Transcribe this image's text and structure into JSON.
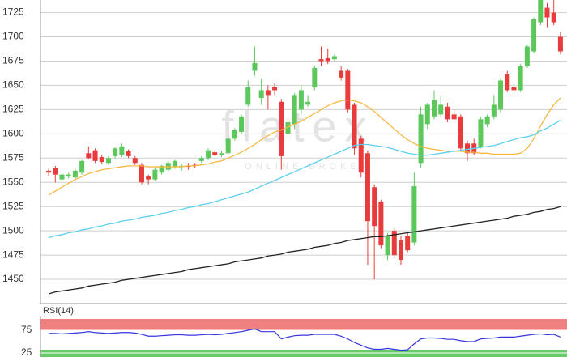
{
  "chart_data": [
    {
      "type": "candlestick",
      "watermark": {
        "logo": "flatex",
        "tagline": "ONLINE BROKER"
      },
      "ylim": [
        1425,
        1738
      ],
      "yticks": [
        1450,
        1475,
        1500,
        1525,
        1550,
        1575,
        1600,
        1625,
        1650,
        1675,
        1700,
        1725
      ],
      "grid": true,
      "up_color": "#5cc85c",
      "down_color": "#e83c3c",
      "open": [
        1562,
        1565,
        1553,
        1556,
        1555,
        1560,
        1580,
        1583,
        1576,
        1570,
        1577,
        1578,
        1582,
        1575,
        1568,
        1556,
        1553,
        1560,
        1563,
        1566,
        1566,
        1567,
        1568,
        1572,
        1575,
        1581,
        1578,
        1580,
        1595,
        1602,
        1630,
        1665,
        1637,
        1645,
        1648,
        1633,
        1600,
        1610,
        1625,
        1630,
        1648,
        1677,
        1678,
        1677,
        1665,
        1665,
        1630,
        1595,
        1580,
        1545,
        1530,
        1475,
        1500,
        1490,
        1495,
        1488,
        1570,
        1610,
        1618,
        1620,
        1628,
        1620,
        1618,
        1590,
        1590,
        1587,
        1610,
        1618,
        1625,
        1662,
        1648,
        1645,
        1670,
        1685,
        1715,
        1730,
        1725,
        1700
      ],
      "high": [
        1564,
        1567,
        1560,
        1560,
        1564,
        1573,
        1587,
        1585,
        1578,
        1577,
        1586,
        1590,
        1584,
        1577,
        1570,
        1558,
        1565,
        1568,
        1572,
        1573,
        1569,
        1570,
        1570,
        1577,
        1585,
        1583,
        1582,
        1598,
        1606,
        1620,
        1655,
        1690,
        1657,
        1650,
        1652,
        1636,
        1615,
        1642,
        1650,
        1640,
        1670,
        1690,
        1688,
        1682,
        1670,
        1667,
        1632,
        1598,
        1583,
        1548,
        1532,
        1498,
        1503,
        1495,
        1498,
        1560,
        1628,
        1632,
        1645,
        1640,
        1632,
        1625,
        1620,
        1593,
        1595,
        1618,
        1620,
        1640,
        1658,
        1665,
        1650,
        1672,
        1692,
        1720,
        1738,
        1735,
        1738,
        1705
      ],
      "low": [
        1557,
        1550,
        1552,
        1554,
        1553,
        1558,
        1574,
        1570,
        1569,
        1568,
        1575,
        1576,
        1575,
        1568,
        1548,
        1548,
        1551,
        1558,
        1561,
        1564,
        1562,
        1563,
        1565,
        1570,
        1573,
        1577,
        1576,
        1578,
        1593,
        1600,
        1628,
        1660,
        1630,
        1625,
        1640,
        1563,
        1595,
        1605,
        1620,
        1628,
        1645,
        1670,
        1672,
        1675,
        1655,
        1622,
        1578,
        1555,
        1465,
        1450,
        1482,
        1470,
        1472,
        1465,
        1478,
        1485,
        1565,
        1605,
        1615,
        1617,
        1612,
        1612,
        1583,
        1572,
        1578,
        1585,
        1607,
        1615,
        1622,
        1643,
        1642,
        1643,
        1668,
        1683,
        1712,
        1710,
        1712,
        1682
      ],
      "close": [
        1560,
        1558,
        1558,
        1558,
        1562,
        1572,
        1575,
        1572,
        1571,
        1575,
        1585,
        1587,
        1577,
        1570,
        1550,
        1553,
        1563,
        1567,
        1570,
        1572,
        1567,
        1566,
        1567,
        1575,
        1583,
        1578,
        1580,
        1595,
        1604,
        1618,
        1648,
        1673,
        1645,
        1640,
        1645,
        1577,
        1612,
        1640,
        1645,
        1633,
        1668,
        1675,
        1675,
        1680,
        1658,
        1625,
        1585,
        1560,
        1510,
        1505,
        1485,
        1495,
        1475,
        1470,
        1480,
        1546,
        1620,
        1630,
        1635,
        1630,
        1615,
        1615,
        1585,
        1580,
        1580,
        1615,
        1618,
        1630,
        1655,
        1645,
        1645,
        1670,
        1690,
        1718,
        1738,
        1720,
        1715,
        1685
      ],
      "series": [
        {
          "color": "#f5b942",
          "values": [
            1537,
            1541,
            1545,
            1549,
            1553,
            1556,
            1559,
            1561,
            1563,
            1564,
            1565,
            1566,
            1567,
            1567,
            1567,
            1566,
            1566,
            1566,
            1566,
            1566,
            1566,
            1567,
            1567,
            1568,
            1569,
            1571,
            1572,
            1575,
            1578,
            1581,
            1585,
            1589,
            1594,
            1598,
            1602,
            1604,
            1607,
            1610,
            1613,
            1617,
            1621,
            1625,
            1629,
            1632,
            1634,
            1635,
            1634,
            1632,
            1628,
            1623,
            1617,
            1611,
            1605,
            1599,
            1594,
            1590,
            1587,
            1585,
            1584,
            1583,
            1582,
            1582,
            1582,
            1581,
            1581,
            1580,
            1580,
            1579,
            1579,
            1579,
            1579,
            1580,
            1585,
            1595,
            1608,
            1620,
            1630,
            1637
          ]
        },
        {
          "color": "#5bd0f0",
          "values": [
            1493,
            1495,
            1496,
            1498,
            1499,
            1501,
            1502,
            1504,
            1505,
            1507,
            1508,
            1510,
            1511,
            1512,
            1514,
            1515,
            1516,
            1518,
            1519,
            1521,
            1522,
            1524,
            1525,
            1527,
            1528,
            1530,
            1532,
            1534,
            1536,
            1538,
            1540,
            1543,
            1546,
            1549,
            1552,
            1555,
            1558,
            1561,
            1564,
            1567,
            1570,
            1573,
            1576,
            1579,
            1582,
            1585,
            1588,
            1589,
            1589,
            1588,
            1587,
            1586,
            1584,
            1582,
            1580,
            1579,
            1578,
            1578,
            1579,
            1580,
            1581,
            1582,
            1583,
            1584,
            1585,
            1586,
            1587,
            1588,
            1590,
            1592,
            1594,
            1596,
            1597,
            1599,
            1603,
            1606,
            1610,
            1614
          ]
        },
        {
          "color": "#222222",
          "values": [
            1435,
            1437,
            1438,
            1439,
            1440,
            1441,
            1443,
            1444,
            1445,
            1446,
            1447,
            1449,
            1450,
            1451,
            1452,
            1453,
            1454,
            1455,
            1456,
            1457,
            1458,
            1460,
            1461,
            1462,
            1463,
            1464,
            1465,
            1466,
            1468,
            1469,
            1470,
            1471,
            1472,
            1474,
            1475,
            1476,
            1478,
            1479,
            1480,
            1481,
            1483,
            1484,
            1485,
            1487,
            1488,
            1490,
            1491,
            1492,
            1493,
            1494,
            1494,
            1495,
            1496,
            1497,
            1498,
            1499,
            1500,
            1501,
            1502,
            1503,
            1504,
            1505,
            1506,
            1507,
            1508,
            1509,
            1510,
            1511,
            1512,
            1513,
            1515,
            1516,
            1517,
            1519,
            1520,
            1522,
            1523,
            1525
          ]
        }
      ]
    },
    {
      "type": "line",
      "title": "RSI(14)",
      "color": "#3535e0",
      "ylim": [
        16,
        100
      ],
      "yticks": [
        25,
        75
      ],
      "high_band_color": "#f08080",
      "low_band_color": "#66cc66",
      "values": [
        68,
        68,
        67,
        68,
        69,
        70,
        72,
        70,
        69,
        68,
        69,
        70,
        70,
        69,
        66,
        62,
        62,
        63,
        64,
        65,
        65,
        64,
        64,
        65,
        66,
        65,
        66,
        68,
        70,
        72,
        75,
        78,
        72,
        72,
        72,
        56,
        60,
        63,
        64,
        64,
        66,
        66,
        66,
        66,
        62,
        56,
        48,
        42,
        36,
        33,
        33,
        35,
        33,
        31,
        32,
        45,
        56,
        58,
        58,
        57,
        55,
        55,
        52,
        50,
        50,
        56,
        57,
        58,
        60,
        60,
        60,
        62,
        64,
        66,
        67,
        65,
        66,
        60
      ]
    }
  ]
}
